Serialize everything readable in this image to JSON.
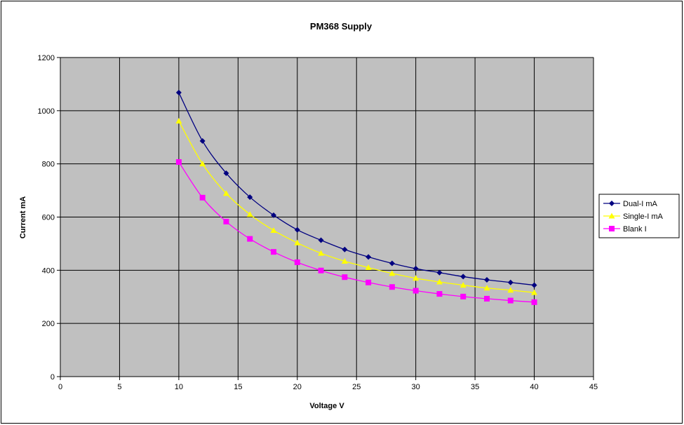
{
  "chart_data": {
    "type": "line",
    "title": "PM368 Supply",
    "xlabel": "Voltage V",
    "ylabel": "Current mA",
    "xlim": [
      0,
      45
    ],
    "ylim": [
      0,
      1200
    ],
    "xticks": [
      0,
      5,
      10,
      15,
      20,
      25,
      30,
      35,
      40,
      45
    ],
    "yticks": [
      0,
      200,
      400,
      600,
      800,
      1000,
      1200
    ],
    "grid": true,
    "plot_background": "#c0c0c0",
    "legend_position": "right",
    "x": [
      10,
      12,
      14,
      16,
      18,
      20,
      22,
      24,
      26,
      28,
      30,
      32,
      34,
      36,
      38,
      40
    ],
    "series": [
      {
        "name": "Dual-I mA",
        "color": "#000080",
        "marker": "diamond",
        "values": [
          1068,
          886,
          765,
          675,
          607,
          552,
          513,
          478,
          450,
          426,
          406,
          391,
          376,
          364,
          354,
          344
        ]
      },
      {
        "name": "Single-I mA",
        "color": "#ffff00",
        "marker": "triangle",
        "values": [
          961,
          800,
          689,
          610,
          550,
          503,
          464,
          434,
          410,
          388,
          370,
          356,
          344,
          333,
          325,
          316
        ]
      },
      {
        "name": "Blank I",
        "color": "#ff00ff",
        "marker": "square",
        "values": [
          807,
          673,
          583,
          518,
          469,
          430,
          399,
          374,
          354,
          337,
          323,
          311,
          301,
          293,
          286,
          280
        ]
      }
    ]
  }
}
